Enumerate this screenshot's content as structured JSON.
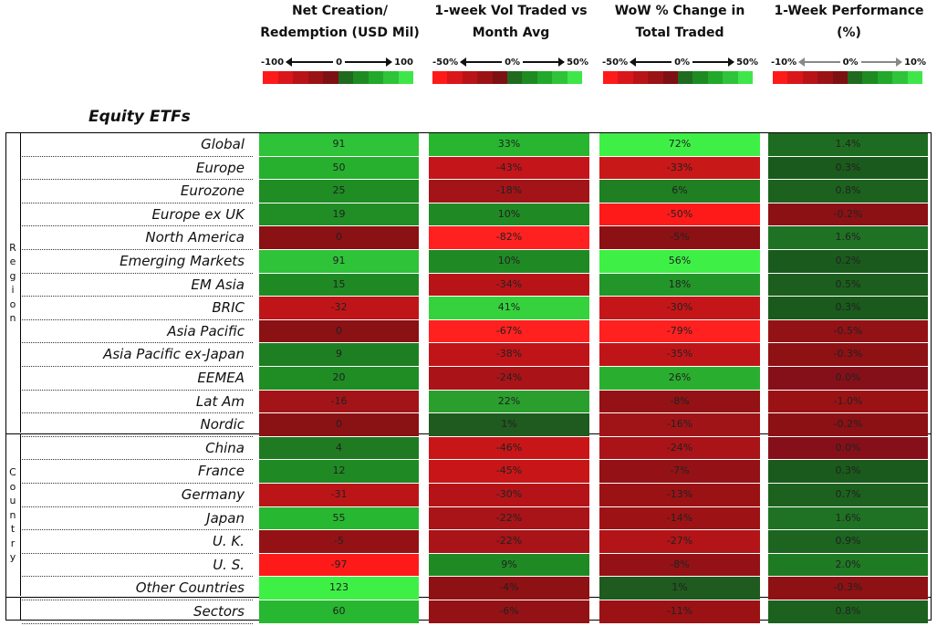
{
  "headers": [
    {
      "line1": "Net Creation/",
      "line2": "Redemption (USD Mil)",
      "min": "-100",
      "mid": "0",
      "max": "100"
    },
    {
      "line1": "1-week Vol Traded vs",
      "line2": "Month Avg",
      "min": "-50%",
      "mid": "0%",
      "max": "50%"
    },
    {
      "line1": "WoW % Change in",
      "line2": "Total Traded",
      "min": "-50%",
      "mid": "0%",
      "max": "50%"
    },
    {
      "line1": "1-Week Performance",
      "line2": "(%)",
      "min": "-10%",
      "mid": "0%",
      "max": "10%"
    }
  ],
  "legend_colors": [
    "#ff1a1a",
    "#d9161a",
    "#b81418",
    "#9b1215",
    "#7d1012",
    "#1f6a1f",
    "#1e8a22",
    "#22a82a",
    "#2fc33a",
    "#3ee64a"
  ],
  "section_title": "Equity ETFs",
  "groups": {
    "region": "Region",
    "country": "Country"
  },
  "rows": [
    {
      "label": "Global",
      "values": [
        "91",
        "33%",
        "72%",
        "1.4%"
      ],
      "colors": [
        "#2fc33a",
        "#28b630",
        "#3ef046",
        "#1e6c22"
      ]
    },
    {
      "label": "Europe",
      "values": [
        "50",
        "-43%",
        "-33%",
        "0.3%"
      ],
      "colors": [
        "#26b02e",
        "#c4151a",
        "#c81818",
        "#1a5a1c"
      ]
    },
    {
      "label": "Eurozone",
      "values": [
        "25",
        "-18%",
        "6%",
        "0.8%"
      ],
      "colors": [
        "#1f8c24",
        "#a31418",
        "#1f7f22",
        "#1c621e"
      ]
    },
    {
      "label": "Europe ex UK",
      "values": [
        "19",
        "10%",
        "-50%",
        "-0.2%"
      ],
      "colors": [
        "#208e25",
        "#1f8a24",
        "#ff1a1a",
        "#8b1114"
      ]
    },
    {
      "label": "North America",
      "values": [
        "0",
        "-82%",
        "-5%",
        "1.6%"
      ],
      "colors": [
        "#8a1114",
        "#ff2020",
        "#8c1114",
        "#1f7224"
      ]
    },
    {
      "label": "Emerging Markets",
      "values": [
        "91",
        "10%",
        "56%",
        "0.2%"
      ],
      "colors": [
        "#2fc33a",
        "#1f8a24",
        "#3ef046",
        "#1b5a1d"
      ]
    },
    {
      "label": "EM Asia",
      "values": [
        "15",
        "-34%",
        "18%",
        "0.5%"
      ],
      "colors": [
        "#1f8a24",
        "#b81418",
        "#23962a",
        "#1b5e1d"
      ]
    },
    {
      "label": "BRIC",
      "values": [
        "-32",
        "41%",
        "-30%",
        "0.3%"
      ],
      "colors": [
        "#c01518",
        "#35d23e",
        "#c41618",
        "#1a5a1c"
      ]
    },
    {
      "label": "Asia Pacific",
      "values": [
        "0",
        "-67%",
        "-79%",
        "-0.5%"
      ],
      "colors": [
        "#8a1114",
        "#ff2020",
        "#ff2020",
        "#931215"
      ]
    },
    {
      "label": "Asia Pacific ex-Japan",
      "values": [
        "9",
        "-38%",
        "-35%",
        "-0.3%"
      ],
      "colors": [
        "#1e7f22",
        "#bf1518",
        "#c01518",
        "#8e1114"
      ]
    },
    {
      "label": "EEMEA",
      "values": [
        "20",
        "-24%",
        "26%",
        "0.0%"
      ],
      "colors": [
        "#1f8c24",
        "#aa1418",
        "#2aae30",
        "#86101a"
      ]
    },
    {
      "label": "Lat Am",
      "values": [
        "-16",
        "22%",
        "-8%",
        "-1.0%"
      ],
      "colors": [
        "#a31418",
        "#2a9f2e",
        "#941215",
        "#9b1215"
      ]
    },
    {
      "label": "Nordic",
      "values": [
        "0",
        "1%",
        "-16%",
        "-0.2%"
      ],
      "colors": [
        "#8a1114",
        "#1f5a1f",
        "#a01418",
        "#8b1114"
      ]
    },
    {
      "label": "China",
      "values": [
        "4",
        "-46%",
        "-24%",
        "0.0%"
      ],
      "colors": [
        "#1f7a22",
        "#c81618",
        "#aa1418",
        "#86101a"
      ]
    },
    {
      "label": "France",
      "values": [
        "12",
        "-45%",
        "-7%",
        "0.3%"
      ],
      "colors": [
        "#1f8a24",
        "#c81618",
        "#941215",
        "#1a5a1c"
      ]
    },
    {
      "label": "Germany",
      "values": [
        "-31",
        "-30%",
        "-13%",
        "0.7%"
      ],
      "colors": [
        "#bb1518",
        "#b41418",
        "#9b1215",
        "#1c621e"
      ]
    },
    {
      "label": "Japan",
      "values": [
        "55",
        "-22%",
        "-14%",
        "1.6%"
      ],
      "colors": [
        "#28b730",
        "#a81418",
        "#9d1315",
        "#1f7224"
      ]
    },
    {
      "label": "U. K.",
      "values": [
        "-5",
        "-22%",
        "-27%",
        "0.9%"
      ],
      "colors": [
        "#941215",
        "#a81418",
        "#b31418",
        "#1c641f"
      ]
    },
    {
      "label": "U. S.",
      "values": [
        "-97",
        "9%",
        "-8%",
        "2.0%"
      ],
      "colors": [
        "#ff1a1a",
        "#1f8a24",
        "#941215",
        "#1f7a24"
      ]
    },
    {
      "label": "Other Countries",
      "values": [
        "123",
        "-4%",
        "1%",
        "-0.3%"
      ],
      "colors": [
        "#3ef046",
        "#8e1114",
        "#1f5a1f",
        "#8e1114"
      ]
    },
    {
      "label": "Sectors",
      "values": [
        "60",
        "-6%",
        "-11%",
        "0.8%"
      ],
      "colors": [
        "#28b730",
        "#941215",
        "#9b1215",
        "#1c621e"
      ]
    }
  ]
}
